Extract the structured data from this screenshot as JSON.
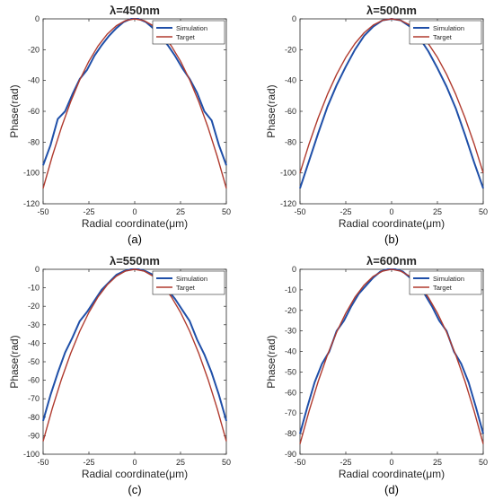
{
  "chart_data": [
    {
      "type": "line",
      "panel_label": "(a)",
      "title": "λ=450nm",
      "xlabel": "Radial coordinate(μm)",
      "ylabel": "Phase(rad)",
      "xlim": [
        -50,
        50
      ],
      "ylim": [
        -120,
        0
      ],
      "xticks": [
        "-50",
        "-25",
        "0",
        "25",
        "50"
      ],
      "yticks": [
        "0",
        "-20",
        "-40",
        "-60",
        "-80",
        "-100",
        "-120"
      ],
      "legend_position": "top-right",
      "series": [
        {
          "name": "Simulation",
          "color": "#1f4fa8",
          "x": [
            -50,
            -46,
            -42,
            -38,
            -34,
            -30,
            -26,
            -22,
            -18,
            -14,
            -10,
            -6,
            -2,
            0,
            2,
            6,
            10,
            14,
            18,
            22,
            26,
            30,
            34,
            38,
            42,
            46,
            50
          ],
          "y": [
            -95,
            -82,
            -65,
            -60,
            -49,
            -39,
            -33,
            -24,
            -17,
            -11,
            -6,
            -2,
            0,
            0,
            0,
            -2,
            -6,
            -11,
            -17,
            -24,
            -32,
            -39,
            -48,
            -60,
            -66,
            -82,
            -95
          ]
        },
        {
          "name": "Target",
          "color": "#b03a2e",
          "x": [
            -50,
            -45,
            -40,
            -35,
            -30,
            -25,
            -20,
            -15,
            -10,
            -5,
            0,
            5,
            10,
            15,
            20,
            25,
            30,
            35,
            40,
            45,
            50
          ],
          "y": [
            -110,
            -89.1,
            -70.4,
            -53.9,
            -39.6,
            -27.5,
            -17.6,
            -9.9,
            -4.4,
            -1.1,
            0,
            -1.1,
            -4.4,
            -9.9,
            -17.6,
            -27.5,
            -39.6,
            -53.9,
            -70.4,
            -89.1,
            -110
          ]
        }
      ]
    },
    {
      "type": "line",
      "panel_label": "(b)",
      "title": "λ=500nm",
      "xlabel": "Radial coordinate(μm)",
      "ylabel": "Phase(rad)",
      "xlim": [
        -50,
        50
      ],
      "ylim": [
        -120,
        0
      ],
      "xticks": [
        "-50",
        "-25",
        "0",
        "25",
        "50"
      ],
      "yticks": [
        "0",
        "-20",
        "-40",
        "-60",
        "-80",
        "-100",
        "-120"
      ],
      "legend_position": "top-right",
      "series": [
        {
          "name": "Simulation",
          "color": "#1f4fa8",
          "x": [
            -50,
            -45,
            -40,
            -35,
            -30,
            -25,
            -20,
            -15,
            -10,
            -5,
            0,
            5,
            10,
            15,
            20,
            25,
            30,
            35,
            40,
            45,
            50
          ],
          "y": [
            -110,
            -92,
            -74,
            -57,
            -43,
            -31,
            -20,
            -11,
            -5,
            -1,
            0,
            -1,
            -5,
            -12,
            -21,
            -32,
            -44,
            -58,
            -75,
            -93,
            -110
          ]
        },
        {
          "name": "Target",
          "color": "#b03a2e",
          "x": [
            -50,
            -45,
            -40,
            -35,
            -30,
            -25,
            -20,
            -15,
            -10,
            -5,
            0,
            5,
            10,
            15,
            20,
            25,
            30,
            35,
            40,
            45,
            50
          ],
          "y": [
            -100,
            -81,
            -64,
            -49,
            -36,
            -25,
            -16,
            -9,
            -4,
            -1,
            0,
            -1,
            -4,
            -9,
            -16,
            -25,
            -36,
            -49,
            -64,
            -81,
            -100
          ]
        }
      ]
    },
    {
      "type": "line",
      "panel_label": "(c)",
      "title": "λ=550nm",
      "xlabel": "Radial coordinate(μm)",
      "ylabel": "Phase(rad)",
      "xlim": [
        -50,
        50
      ],
      "ylim": [
        -100,
        0
      ],
      "xticks": [
        "-50",
        "-25",
        "0",
        "25",
        "50"
      ],
      "yticks": [
        "0",
        "-10",
        "-20",
        "-30",
        "-40",
        "-50",
        "-60",
        "-70",
        "-80",
        "-90",
        "-100"
      ],
      "legend_position": "top-right",
      "series": [
        {
          "name": "Simulation",
          "color": "#1f4fa8",
          "x": [
            -50,
            -46,
            -42,
            -38,
            -34,
            -30,
            -26,
            -22,
            -18,
            -14,
            -10,
            -6,
            -2,
            0,
            2,
            6,
            10,
            14,
            18,
            22,
            26,
            30,
            34,
            38,
            42,
            46,
            50
          ],
          "y": [
            -82,
            -68,
            -56,
            -45,
            -37,
            -28,
            -23,
            -17,
            -11,
            -7,
            -3,
            -1,
            0,
            0,
            0,
            -1,
            -3,
            -7,
            -11,
            -16,
            -22,
            -28,
            -38,
            -46,
            -56,
            -68,
            -82
          ]
        },
        {
          "name": "Target",
          "color": "#b03a2e",
          "x": [
            -50,
            -45,
            -40,
            -35,
            -30,
            -25,
            -20,
            -15,
            -10,
            -5,
            0,
            5,
            10,
            15,
            20,
            25,
            30,
            35,
            40,
            45,
            50
          ],
          "y": [
            -93,
            -75.3,
            -59.5,
            -45.6,
            -33.5,
            -23.3,
            -14.9,
            -8.4,
            -3.7,
            -0.9,
            0,
            -0.9,
            -3.7,
            -8.4,
            -14.9,
            -23.3,
            -33.5,
            -45.6,
            -59.5,
            -75.3,
            -93
          ]
        }
      ]
    },
    {
      "type": "line",
      "panel_label": "(d)",
      "title": "λ=600nm",
      "xlabel": "Radial coordinate(μm)",
      "ylabel": "Phase(rad)",
      "xlim": [
        -50,
        50
      ],
      "ylim": [
        -90,
        0
      ],
      "xticks": [
        "-50",
        "-25",
        "0",
        "25",
        "50"
      ],
      "yticks": [
        "0",
        "-10",
        "-20",
        "-30",
        "-40",
        "-50",
        "-60",
        "-70",
        "-80",
        "-90"
      ],
      "legend_position": "top-right",
      "series": [
        {
          "name": "Simulation",
          "color": "#1f4fa8",
          "x": [
            -50,
            -46,
            -42,
            -38,
            -34,
            -30,
            -26,
            -22,
            -18,
            -14,
            -10,
            -6,
            -2,
            0,
            2,
            6,
            10,
            14,
            18,
            22,
            26,
            30,
            34,
            38,
            42,
            46,
            50
          ],
          "y": [
            -80,
            -67,
            -55,
            -46,
            -40,
            -30,
            -25,
            -18,
            -12,
            -8,
            -4,
            -1,
            0,
            0,
            0,
            -1,
            -4,
            -8,
            -12,
            -18,
            -25,
            -30,
            -40,
            -46,
            -55,
            -67,
            -80
          ]
        },
        {
          "name": "Target",
          "color": "#b03a2e",
          "x": [
            -50,
            -45,
            -40,
            -35,
            -30,
            -25,
            -20,
            -15,
            -10,
            -5,
            0,
            5,
            10,
            15,
            20,
            25,
            30,
            35,
            40,
            45,
            50
          ],
          "y": [
            -85,
            -68.9,
            -54.4,
            -41.7,
            -30.6,
            -21.3,
            -13.6,
            -7.7,
            -3.4,
            -0.9,
            0,
            -0.9,
            -3.4,
            -7.7,
            -13.6,
            -21.3,
            -30.6,
            -41.7,
            -54.4,
            -68.9,
            -85
          ]
        }
      ]
    }
  ]
}
